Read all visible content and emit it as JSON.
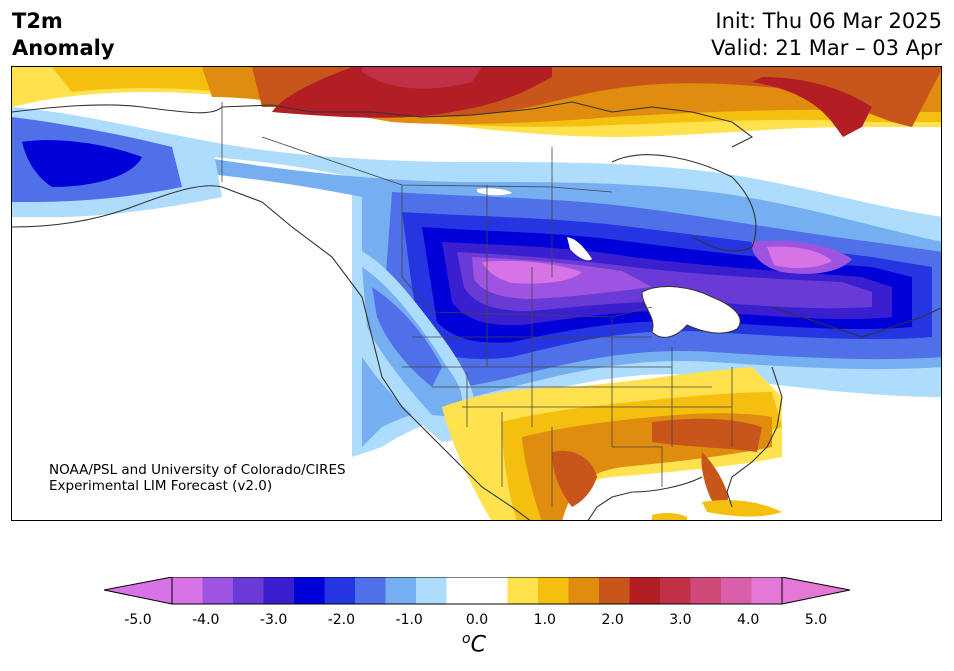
{
  "header": {
    "title_line1": "T2m",
    "title_line2": "Anomaly",
    "init": "Init: Thu 06 Mar 2025",
    "valid": "Valid: 21 Mar – 03 Apr"
  },
  "credit": {
    "line1": "NOAA/PSL and University of Colorado/CIRES",
    "line2": "Experimental LIM Forecast (v2.0)"
  },
  "colorbar": {
    "ticks": [
      "-5.0",
      "-4.0",
      "-3.0",
      "-2.0",
      "-1.0",
      "0.0",
      "1.0",
      "2.0",
      "3.0",
      "4.0",
      "5.0"
    ],
    "units_sup": "o",
    "units_main": "C",
    "colors": [
      "#d873e6",
      "#9e54e0",
      "#6a3ad6",
      "#3a1fd0",
      "#0000d8",
      "#2535e2",
      "#4f70e8",
      "#76aef2",
      "#aedcfc",
      "#ffffff",
      "#ffffff",
      "#ffe24d",
      "#f5bf10",
      "#e08c0f",
      "#c8561a",
      "#b31e24",
      "#c23048",
      "#cf4a78",
      "#d85fa8",
      "#e478d6"
    ],
    "extend_low": "#d873e6",
    "extend_high": "#e478d6"
  }
}
